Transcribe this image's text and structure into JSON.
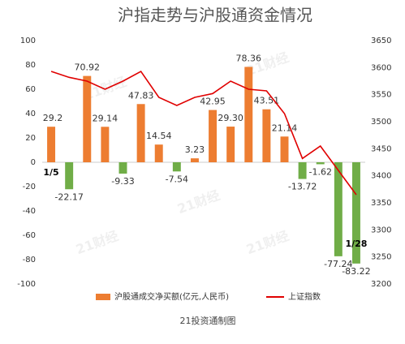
{
  "chart_data": {
    "type": "bar",
    "title": "沪指走势与沪股通资金情况",
    "source": "21投资通制图",
    "watermark": "21财经",
    "categories": [
      "1/5",
      null,
      null,
      null,
      null,
      null,
      null,
      null,
      null,
      null,
      null,
      null,
      null,
      null,
      null,
      null,
      null,
      "1/28"
    ],
    "series": [
      {
        "name": "沪股通成交净买额(亿元,人民币)",
        "type": "bar",
        "color": "#ed7d31",
        "negative_color": "#70ad47",
        "values": [
          29.2,
          -22.17,
          70.92,
          29.14,
          -9.33,
          47.83,
          14.54,
          -7.54,
          3.23,
          42.95,
          29.3,
          78.36,
          43.51,
          21.14,
          -13.72,
          -1.62,
          -77.24,
          -83.22
        ],
        "value_labels": [
          "29.2",
          "-22.17",
          "70.92",
          "29.14",
          "-9.33",
          "47.83",
          "14.54",
          "-7.54",
          "3.23",
          "42.95",
          "29.30",
          "78.36",
          "43.51",
          "21.14",
          "-13.72",
          "-1.62",
          "-77.24",
          "-83.22"
        ]
      },
      {
        "name": "上证指数",
        "type": "line",
        "axis": "y2",
        "color": "#e00000",
        "values": [
          3593,
          3582,
          3575,
          3560,
          3575,
          3593,
          3545,
          3530,
          3545,
          3552,
          3575,
          3560,
          3557,
          3515,
          3432,
          3455,
          3410,
          3365
        ]
      }
    ],
    "ylim": [
      -100,
      100
    ],
    "yticks": [
      -100,
      -80,
      -60,
      -40,
      -20,
      0,
      20,
      40,
      60,
      80,
      100
    ],
    "y2lim": [
      3200,
      3650
    ],
    "y2ticks": [
      3200,
      3250,
      3300,
      3350,
      3400,
      3450,
      3500,
      3550,
      3600,
      3650
    ],
    "grid": false
  }
}
